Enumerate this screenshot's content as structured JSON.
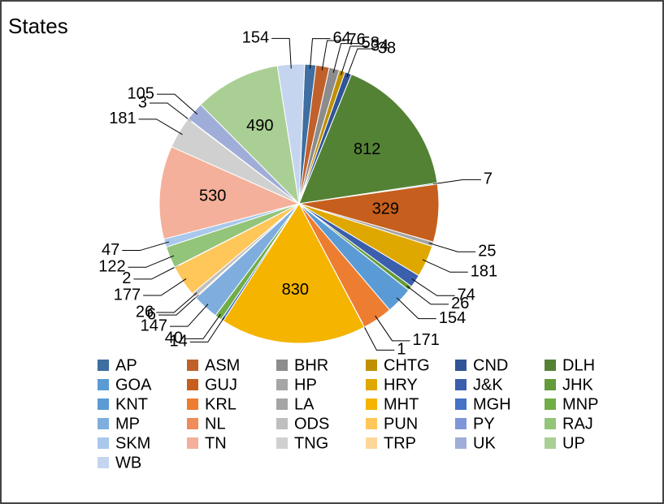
{
  "chart_data": {
    "type": "pie",
    "title": "States",
    "categories": [
      "AP",
      "ASM",
      "BHR",
      "CHTG",
      "CND",
      "DLH",
      "GOA",
      "GUJ",
      "HP",
      "HRY",
      "J&K",
      "JHK",
      "KNT",
      "KRL",
      "LA",
      "MHT",
      "MGH",
      "MNP",
      "MP",
      "NL",
      "ODS",
      "PUN",
      "PY",
      "RAJ",
      "SKM",
      "TN",
      "TNG",
      "TRP",
      "UK",
      "UP",
      "WB"
    ],
    "values": [
      64,
      76,
      58,
      34,
      38,
      812,
      7,
      329,
      25,
      181,
      74,
      26,
      154,
      171,
      1,
      830,
      14,
      40,
      147,
      6,
      26,
      177,
      2,
      122,
      47,
      530,
      181,
      3,
      105,
      490,
      154
    ],
    "colors": [
      "#3f6ea0",
      "#c0612b",
      "#8c8c8c",
      "#bf9000",
      "#2f5597",
      "#548235",
      "#5b9bd5",
      "#c65f1d",
      "#a5a5a5",
      "#dfa800",
      "#3b5fad",
      "#639a3a",
      "#5b9bd5",
      "#ed7d31",
      "#a5a5a5",
      "#f4b400",
      "#4472c4",
      "#70ad47",
      "#7faede",
      "#f08c5a",
      "#bfbfbf",
      "#ffc659",
      "#7f96d9",
      "#92c47a",
      "#a9c8ec",
      "#f4b09a",
      "#d0d0d0",
      "#ffd699",
      "#9fadd8",
      "#a9cf94",
      "#c5d5ef"
    ],
    "legend": "bottom"
  }
}
